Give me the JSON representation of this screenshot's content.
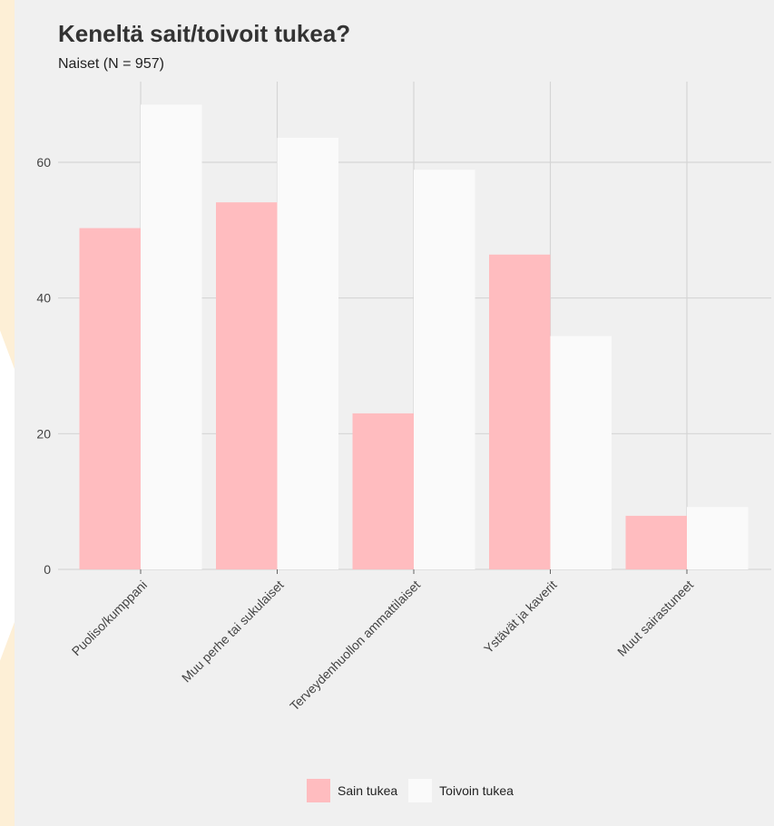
{
  "chart_data": {
    "type": "bar",
    "title": "Keneltä sait/toivoit tukea?",
    "subtitle": "Naiset (N = 957)",
    "xlabel": "",
    "ylabel": "",
    "categories": [
      "Puoliso/kumppani",
      "Muu perhe tai sukulaiset",
      "Terveydenhuollon ammattilaiset",
      "Ystävät ja kaverit",
      "Muut sairastuneet"
    ],
    "series": [
      {
        "name": "Sain tukea",
        "values": [
          50.3,
          54.1,
          23.0,
          46.4,
          7.9
        ],
        "color": "#ffbcbf"
      },
      {
        "name": "Toivoin tukea",
        "values": [
          68.5,
          63.6,
          58.9,
          34.4,
          9.2
        ],
        "color": "#fafafa"
      }
    ],
    "yticks": [
      0,
      20,
      40,
      60
    ],
    "ylim": [
      0,
      72
    ],
    "grid": true,
    "legend_position": "bottom"
  }
}
